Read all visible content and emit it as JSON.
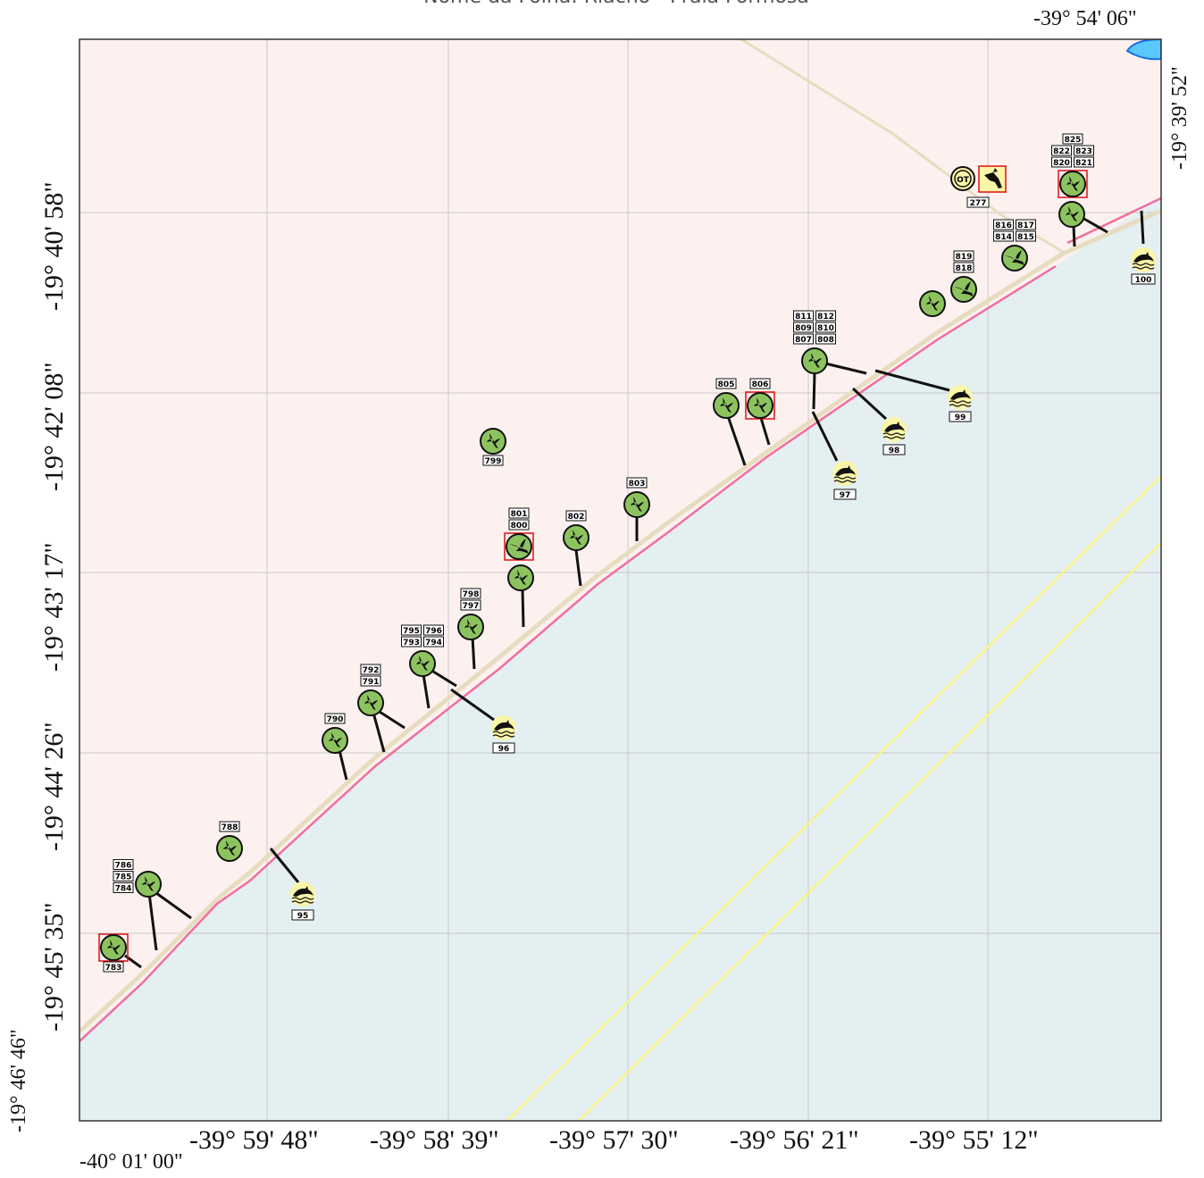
{
  "title": "Nome da Folha: Riacho - Praia Formosa",
  "colors": {
    "land": "#fdf1ef",
    "sea": "#e3eff1",
    "coast": "#f06fa0",
    "shore": "#e8dcc0",
    "grid": "#c9c9c9",
    "yellow_line": "#f8f589",
    "road": "#e8dcc0",
    "bird_fill": "#8dc35f",
    "dolphin_fill": "#fbf5a8",
    "highlight": "#e01010",
    "lake": "#5ac8fa"
  },
  "coords": {
    "top_right": "-39° 54' 06\"",
    "bottom_left": "-40° 01' 00\"",
    "right_top": "-19° 39' 52\"",
    "left_bottom": "-19° 46' 46\"",
    "bottom_ticks": [
      "-39° 59' 48\"",
      "-39° 58' 39\"",
      "-39° 57' 30\"",
      "-39° 56' 21\"",
      "-39° 55' 12\""
    ],
    "left_ticks": [
      "-19° 40' 58\"",
      "-19° 42' 08\"",
      "-19° 43' 17\"",
      "-19° 44' 26\"",
      "-19° 45' 35\""
    ]
  },
  "markers": {
    "birds": [
      {
        "labels": [
          "783"
        ],
        "highlight": true
      },
      {
        "labels": [
          "786",
          "785",
          "784"
        ]
      },
      {
        "labels": [
          "788"
        ]
      },
      {
        "labels": [
          "790"
        ]
      },
      {
        "labels": [
          "792",
          "791"
        ]
      },
      {
        "labels": [
          "795",
          "796",
          "793",
          "794"
        ]
      },
      {
        "labels": [
          "798",
          "797"
        ]
      },
      {
        "labels": [
          "799"
        ]
      },
      {
        "labels": [
          "801",
          "800"
        ],
        "highlight": true,
        "icon": "swallow-icon"
      },
      {
        "labels": []
      },
      {
        "labels": [
          "802"
        ]
      },
      {
        "labels": [
          "803"
        ]
      },
      {
        "labels": [
          "805"
        ]
      },
      {
        "labels": [
          "806"
        ],
        "highlight": true
      },
      {
        "labels": [
          "811",
          "812",
          "809",
          "810",
          "807",
          "808"
        ]
      },
      {
        "labels": []
      },
      {
        "labels": [
          "819",
          "818"
        ],
        "icon": "swallow-icon"
      },
      {
        "labels": [
          "816",
          "817",
          "814",
          "815"
        ],
        "icon": "swallow-icon"
      },
      {
        "labels": [
          "825",
          "822",
          "823",
          "820",
          "821"
        ],
        "highlight": true
      },
      {
        "labels": []
      }
    ],
    "dolphins": [
      "95",
      "96",
      "97",
      "98",
      "99",
      "100"
    ],
    "other": {
      "ot_label": "OT",
      "bird_label": "277"
    }
  }
}
